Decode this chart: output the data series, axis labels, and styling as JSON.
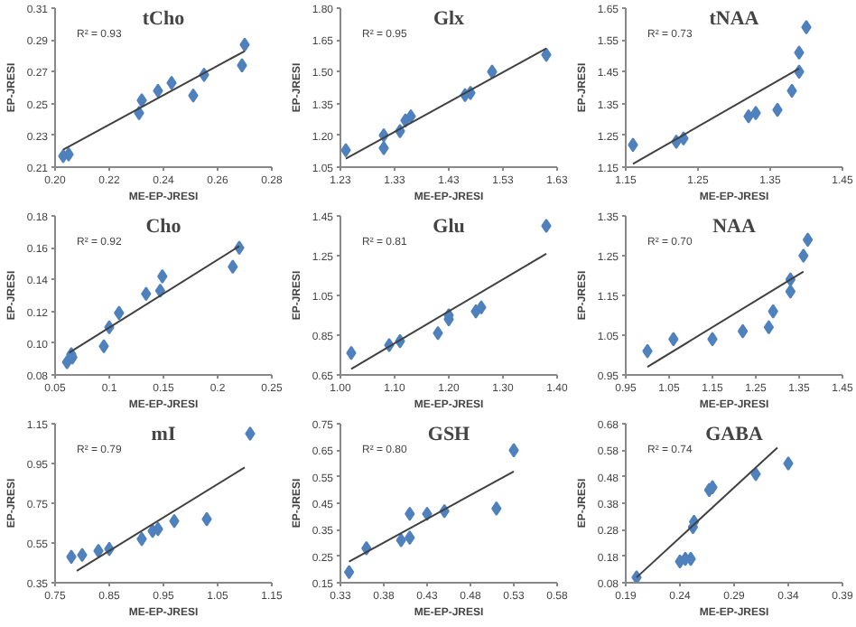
{
  "chart_data": [
    {
      "type": "scatter",
      "title": "tCho",
      "xlabel": "ME-EP-JRESI",
      "ylabel": "EP-JRESI",
      "annotations": [
        "R² = 0.93"
      ],
      "marker": "diamond",
      "grid": false,
      "xlim": [
        0.2,
        0.28
      ],
      "ylim": [
        0.21,
        0.31
      ],
      "xticks": [
        {
          "value": 0.2,
          "label": "0.20"
        },
        0.22,
        0.24,
        0.26,
        0.28
      ],
      "yticks": [
        0.21,
        0.23,
        0.25,
        0.27,
        0.29,
        0.31
      ],
      "series": [
        {
          "color": "#4f81bd",
          "x": [
            0.203,
            0.205,
            0.231,
            0.232,
            0.238,
            0.243,
            0.251,
            0.255,
            0.269,
            0.27
          ],
          "values": [
            0.217,
            0.218,
            0.244,
            0.252,
            0.258,
            0.263,
            0.255,
            0.268,
            0.274,
            0.287
          ]
        },
        {
          "type": "line",
          "marker": "none",
          "color": "#404040",
          "x": [
            0.203,
            0.27
          ],
          "values": [
            0.221,
            0.283
          ]
        }
      ]
    },
    {
      "type": "scatter",
      "title": "Glx",
      "xlabel": "ME-EP-JRESI",
      "ylabel": "EP-JRESI",
      "annotations": [
        "R² = 0.95"
      ],
      "marker": "diamond",
      "grid": false,
      "xlim": [
        1.23,
        1.63
      ],
      "ylim": [
        1.05,
        1.8
      ],
      "xticks": [
        1.23,
        1.33,
        1.43,
        1.53,
        1.63
      ],
      "yticks": [
        1.05,
        {
          "value": 1.2,
          "label": "1.20"
        },
        1.35,
        {
          "value": 1.5,
          "label": "1.50"
        },
        1.65,
        {
          "value": 1.8,
          "label": "1.80"
        }
      ],
      "series": [
        {
          "color": "#4f81bd",
          "x": [
            1.24,
            1.31,
            1.31,
            1.34,
            1.35,
            1.36,
            1.46,
            1.47,
            1.51,
            1.61
          ],
          "values": [
            1.13,
            1.2,
            1.14,
            1.22,
            1.27,
            1.29,
            1.39,
            1.4,
            1.5,
            1.58
          ]
        },
        {
          "type": "line",
          "marker": "none",
          "color": "#404040",
          "x": [
            1.24,
            1.61
          ],
          "values": [
            1.09,
            1.61
          ]
        }
      ]
    },
    {
      "type": "scatter",
      "title": "tNAA",
      "xlabel": "ME-EP-JRESI",
      "ylabel": "EP-JRESI",
      "annotations": [
        "R² = 0.73"
      ],
      "marker": "diamond",
      "grid": false,
      "xlim": [
        1.15,
        1.45
      ],
      "ylim": [
        1.15,
        1.65
      ],
      "xticks": [
        1.15,
        1.25,
        1.35,
        1.45
      ],
      "yticks": [
        1.15,
        1.25,
        1.35,
        1.45,
        1.55,
        1.65
      ],
      "series": [
        {
          "color": "#4f81bd",
          "x": [
            1.16,
            1.22,
            1.23,
            1.32,
            1.33,
            1.36,
            1.38,
            1.39,
            1.39,
            1.4
          ],
          "values": [
            1.22,
            1.23,
            1.24,
            1.31,
            1.32,
            1.33,
            1.39,
            1.45,
            1.51,
            1.59
          ]
        },
        {
          "type": "line",
          "marker": "none",
          "color": "#404040",
          "x": [
            1.16,
            1.39
          ],
          "values": [
            1.16,
            1.46
          ]
        }
      ]
    },
    {
      "type": "scatter",
      "title": "Cho",
      "xlabel": "ME-EP-JRESI",
      "ylabel": "EP-JRESI",
      "annotations": [
        "R² = 0.92"
      ],
      "marker": "diamond",
      "grid": false,
      "xlim": [
        0.05,
        0.25
      ],
      "ylim": [
        0.08,
        0.18
      ],
      "xticks": [
        0.05,
        0.1,
        0.15,
        0.2,
        0.25
      ],
      "yticks": [
        0.08,
        {
          "value": 0.1,
          "label": "0.10"
        },
        0.12,
        0.14,
        0.16,
        0.18
      ],
      "series": [
        {
          "color": "#4f81bd",
          "x": [
            0.061,
            0.065,
            0.066,
            0.095,
            0.1,
            0.109,
            0.134,
            0.147,
            0.149,
            0.214,
            0.22
          ],
          "values": [
            0.088,
            0.093,
            0.091,
            0.098,
            0.11,
            0.119,
            0.131,
            0.133,
            0.142,
            0.148,
            0.16
          ]
        },
        {
          "type": "line",
          "marker": "none",
          "color": "#404040",
          "x": [
            0.063,
            0.22
          ],
          "values": [
            0.094,
            0.161
          ]
        }
      ]
    },
    {
      "type": "scatter",
      "title": "Glu",
      "xlabel": "ME-EP-JRESI",
      "ylabel": "EP-JRESI",
      "annotations": [
        "R² = 0.81"
      ],
      "marker": "diamond",
      "grid": false,
      "xlim": [
        1.0,
        1.4
      ],
      "ylim": [
        0.65,
        1.45
      ],
      "xticks": [
        {
          "value": 1.0,
          "label": "1.00"
        },
        {
          "value": 1.1,
          "label": "1.10"
        },
        {
          "value": 1.2,
          "label": "1.20"
        },
        {
          "value": 1.3,
          "label": "1.30"
        },
        {
          "value": 1.4,
          "label": "1.40"
        }
      ],
      "yticks": [
        0.65,
        0.85,
        1.05,
        1.25,
        1.45
      ],
      "series": [
        {
          "color": "#4f81bd",
          "x": [
            1.02,
            1.09,
            1.11,
            1.18,
            1.2,
            1.2,
            1.25,
            1.26,
            1.38
          ],
          "values": [
            0.76,
            0.8,
            0.82,
            0.86,
            0.93,
            0.95,
            0.97,
            0.99,
            1.4
          ]
        },
        {
          "type": "line",
          "marker": "none",
          "color": "#404040",
          "x": [
            1.02,
            1.38
          ],
          "values": [
            0.68,
            1.26
          ]
        }
      ]
    },
    {
      "type": "scatter",
      "title": "NAA",
      "xlabel": "ME-EP-JRESI",
      "ylabel": "EP-JRESI",
      "annotations": [
        "R² = 0.70"
      ],
      "marker": "diamond",
      "grid": false,
      "xlim": [
        0.95,
        1.45
      ],
      "ylim": [
        0.95,
        1.35
      ],
      "xticks": [
        0.95,
        1.05,
        1.15,
        1.25,
        1.35,
        1.45
      ],
      "yticks": [
        0.95,
        1.05,
        1.15,
        1.25,
        1.35
      ],
      "series": [
        {
          "color": "#4f81bd",
          "x": [
            1.0,
            1.06,
            1.15,
            1.22,
            1.28,
            1.29,
            1.33,
            1.33,
            1.36,
            1.37
          ],
          "values": [
            1.01,
            1.04,
            1.04,
            1.06,
            1.07,
            1.11,
            1.16,
            1.19,
            1.25,
            1.29
          ]
        },
        {
          "type": "line",
          "marker": "none",
          "color": "#404040",
          "x": [
            1.0,
            1.36
          ],
          "values": [
            0.97,
            1.21
          ]
        }
      ]
    },
    {
      "type": "scatter",
      "title": "mI",
      "xlabel": "ME-EP-JRESI",
      "ylabel": "EP-JRESI",
      "annotations": [
        "R² = 0.79"
      ],
      "marker": "diamond",
      "grid": false,
      "xlim": [
        0.75,
        1.15
      ],
      "ylim": [
        0.35,
        1.15
      ],
      "xticks": [
        0.75,
        0.85,
        0.95,
        1.05,
        1.15
      ],
      "yticks": [
        0.35,
        0.55,
        0.75,
        0.95,
        1.15
      ],
      "series": [
        {
          "color": "#4f81bd",
          "x": [
            0.78,
            0.8,
            0.83,
            0.85,
            0.91,
            0.93,
            0.94,
            0.97,
            1.03,
            1.11
          ],
          "values": [
            0.48,
            0.49,
            0.51,
            0.52,
            0.57,
            0.61,
            0.62,
            0.66,
            0.67,
            1.1
          ]
        },
        {
          "type": "line",
          "marker": "none",
          "color": "#404040",
          "x": [
            0.79,
            1.1
          ],
          "values": [
            0.41,
            0.93
          ]
        }
      ]
    },
    {
      "type": "scatter",
      "title": "GSH",
      "xlabel": "ME-EP-JRESI",
      "ylabel": "EP-JRESI",
      "annotations": [
        "R² = 0.80"
      ],
      "marker": "diamond",
      "grid": false,
      "xlim": [
        0.33,
        0.58
      ],
      "ylim": [
        0.15,
        0.75
      ],
      "xticks": [
        0.33,
        0.38,
        0.43,
        0.48,
        0.53,
        0.58
      ],
      "yticks": [
        0.15,
        0.25,
        0.35,
        0.45,
        0.55,
        0.65,
        0.75
      ],
      "series": [
        {
          "color": "#4f81bd",
          "x": [
            0.34,
            0.36,
            0.4,
            0.41,
            0.41,
            0.43,
            0.45,
            0.51,
            0.53
          ],
          "values": [
            0.19,
            0.28,
            0.31,
            0.32,
            0.41,
            0.41,
            0.42,
            0.43,
            0.65
          ]
        },
        {
          "type": "line",
          "marker": "none",
          "color": "#404040",
          "x": [
            0.34,
            0.53
          ],
          "values": [
            0.23,
            0.57
          ]
        }
      ]
    },
    {
      "type": "scatter",
      "title": "GABA",
      "xlabel": "ME-EP-JRESI",
      "ylabel": "EP-JRESI",
      "annotations": [
        "R² = 0.74"
      ],
      "marker": "diamond",
      "grid": false,
      "xlim": [
        0.19,
        0.39
      ],
      "ylim": [
        0.08,
        0.68
      ],
      "xticks": [
        0.19,
        0.24,
        0.29,
        0.34,
        0.39
      ],
      "yticks": [
        0.08,
        0.18,
        0.28,
        0.38,
        0.48,
        0.58,
        0.68
      ],
      "series": [
        {
          "color": "#4f81bd",
          "x": [
            0.2,
            0.24,
            0.245,
            0.25,
            0.252,
            0.253,
            0.267,
            0.27,
            0.31,
            0.34
          ],
          "values": [
            0.1,
            0.16,
            0.17,
            0.17,
            0.29,
            0.31,
            0.43,
            0.44,
            0.49,
            0.53
          ]
        },
        {
          "type": "line",
          "marker": "none",
          "color": "#404040",
          "x": [
            0.2,
            0.33
          ],
          "values": [
            0.1,
            0.59
          ]
        }
      ]
    }
  ]
}
